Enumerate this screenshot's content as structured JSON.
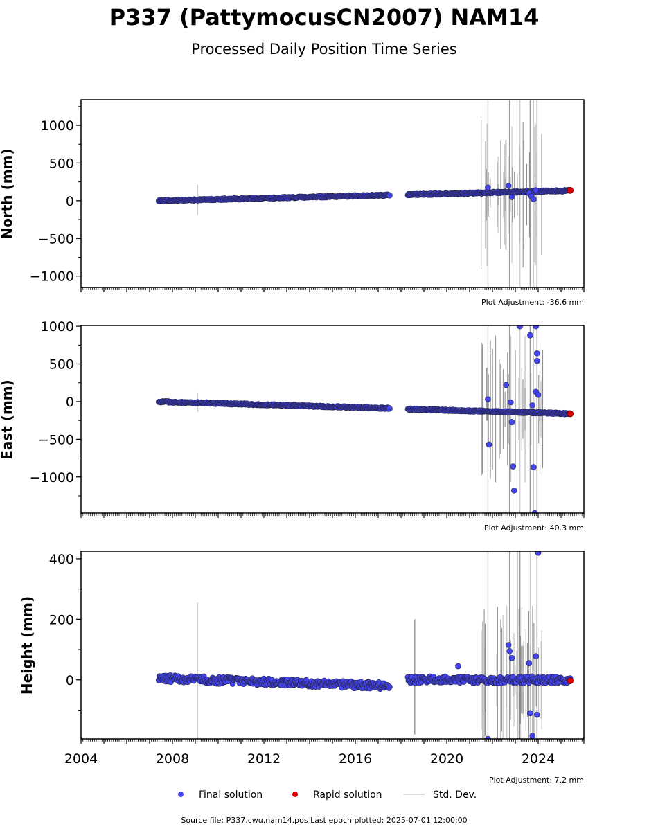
{
  "title": "P337 (PattymocusCN2007) NAM14",
  "subtitle": "Processed Daily Position Time Series",
  "footer": "Source file: P337.cwu.nam14.pos  Last epoch plotted: 2025-07-01 12:00:00",
  "legend": {
    "final": "Final solution",
    "rapid": "Rapid solution",
    "std": "Std. Dev."
  },
  "colors": {
    "final_fill": "#4444ee",
    "rapid_fill": "#e00000",
    "std_line": "#aaaaaa",
    "axis": "#000000"
  },
  "chart_data": [
    {
      "type": "scatter",
      "panel": "north",
      "ylabel": "North (mm)",
      "xlim": [
        2004,
        2026
      ],
      "ylim": [
        -1150,
        1340
      ],
      "yticks": [
        -1000,
        -500,
        0,
        500,
        1000
      ],
      "ytick_labels": [
        "−1000",
        "−500",
        "0",
        "500",
        "1000"
      ],
      "adjustment": "Plot Adjustment: -36.6 mm",
      "series": [
        {
          "name": "Final solution",
          "segments": [
            {
              "x": [
                2007.4,
                2017.5
              ],
              "y": [
                0,
                75
              ]
            },
            {
              "x": [
                2018.3,
                2025.4
              ],
              "y": [
                80,
                135
              ]
            }
          ]
        },
        {
          "name": "Rapid solution",
          "x": [
            2025.4
          ],
          "y": [
            138
          ]
        }
      ],
      "outliers": [
        {
          "x": 2021.8,
          "y": 175
        },
        {
          "x": 2022.7,
          "y": 200
        },
        {
          "x": 2022.85,
          "y": 50
        },
        {
          "x": 2023.6,
          "y": 100
        },
        {
          "x": 2023.7,
          "y": 60
        },
        {
          "x": 2023.8,
          "y": 20
        },
        {
          "x": 2023.9,
          "y": 140
        }
      ],
      "stdev": [
        {
          "x": 2009.1,
          "lo": -190,
          "hi": 210
        },
        {
          "x": 2021.9,
          "lo": -90,
          "hi": 290
        },
        {
          "x": 2021.8,
          "lo": -1150,
          "hi": 1340
        },
        {
          "x": 2022.75,
          "lo": -1150,
          "hi": 1340
        },
        {
          "x": 2023.2,
          "lo": -1150,
          "hi": 1340
        },
        {
          "x": 2023.65,
          "lo": -1150,
          "hi": 1340
        },
        {
          "x": 2023.8,
          "lo": -1150,
          "hi": 1340
        },
        {
          "x": 2023.95,
          "lo": -1150,
          "hi": 1340
        }
      ]
    },
    {
      "type": "scatter",
      "panel": "east",
      "ylabel": "East (mm)",
      "xlim": [
        2004,
        2026
      ],
      "ylim": [
        -1480,
        1010
      ],
      "yticks": [
        -1000,
        -500,
        0,
        500,
        1000
      ],
      "ytick_labels": [
        "−1000",
        "−500",
        "0",
        "500",
        "1000"
      ],
      "adjustment": "Plot Adjustment: 40.3 mm",
      "series": [
        {
          "name": "Final solution",
          "segments": [
            {
              "x": [
                2007.4,
                2017.5
              ],
              "y": [
                0,
                -90
              ]
            },
            {
              "x": [
                2018.3,
                2025.4
              ],
              "y": [
                -100,
                -160
              ]
            }
          ]
        },
        {
          "name": "Rapid solution",
          "x": [
            2025.4
          ],
          "y": [
            -162
          ]
        }
      ],
      "outliers": [
        {
          "x": 2021.8,
          "y": 30
        },
        {
          "x": 2021.85,
          "y": -570
        },
        {
          "x": 2022.6,
          "y": 220
        },
        {
          "x": 2022.8,
          "y": -10
        },
        {
          "x": 2022.85,
          "y": -270
        },
        {
          "x": 2022.9,
          "y": -860
        },
        {
          "x": 2022.95,
          "y": -1180
        },
        {
          "x": 2023.2,
          "y": 1000
        },
        {
          "x": 2023.65,
          "y": 880
        },
        {
          "x": 2023.75,
          "y": -50
        },
        {
          "x": 2023.8,
          "y": -870
        },
        {
          "x": 2023.85,
          "y": -1480
        },
        {
          "x": 2023.9,
          "y": 1000
        },
        {
          "x": 2023.95,
          "y": 640
        },
        {
          "x": 2023.95,
          "y": 540
        },
        {
          "x": 2023.9,
          "y": 130
        },
        {
          "x": 2024.0,
          "y": 90
        }
      ],
      "stdev": [
        {
          "x": 2009.1,
          "lo": -140,
          "hi": 110
        },
        {
          "x": 2021.75,
          "lo": -250,
          "hi": 450
        },
        {
          "x": 2021.8,
          "lo": -1480,
          "hi": 1010
        },
        {
          "x": 2022.75,
          "lo": -1480,
          "hi": 1010
        },
        {
          "x": 2023.2,
          "lo": -1480,
          "hi": 1010
        },
        {
          "x": 2023.65,
          "lo": -1480,
          "hi": 1010
        },
        {
          "x": 2023.8,
          "lo": -1480,
          "hi": 1010
        },
        {
          "x": 2023.95,
          "lo": -1480,
          "hi": 1010
        }
      ]
    },
    {
      "type": "scatter",
      "panel": "height",
      "ylabel": "Height (mm)",
      "xlim": [
        2004,
        2026
      ],
      "ylim": [
        -195,
        425
      ],
      "yticks": [
        0,
        200,
        400
      ],
      "ytick_labels": [
        "0",
        "200",
        "400"
      ],
      "xticks": [
        2004,
        2008,
        2012,
        2016,
        2020,
        2024
      ],
      "xtick_labels": [
        "2004",
        "2008",
        "2012",
        "2016",
        "2020",
        "2024"
      ],
      "adjustment": "Plot Adjustment: 7.2 mm",
      "series": [
        {
          "name": "Final solution",
          "segments": [
            {
              "x": [
                2007.4,
                2017.5
              ],
              "y": [
                5,
                -20
              ]
            },
            {
              "x": [
                2018.3,
                2025.4
              ],
              "y": [
                0,
                0
              ]
            }
          ]
        },
        {
          "name": "Rapid solution",
          "x": [
            2025.4
          ],
          "y": [
            -3
          ]
        }
      ],
      "outliers": [
        {
          "x": 2020.5,
          "y": 45
        },
        {
          "x": 2021.8,
          "y": -195
        },
        {
          "x": 2022.7,
          "y": 115
        },
        {
          "x": 2022.75,
          "y": 95
        },
        {
          "x": 2022.85,
          "y": 72
        },
        {
          "x": 2023.6,
          "y": 55
        },
        {
          "x": 2023.65,
          "y": -110
        },
        {
          "x": 2023.75,
          "y": -185
        },
        {
          "x": 2023.9,
          "y": 78
        },
        {
          "x": 2023.95,
          "y": -115
        },
        {
          "x": 2024.0,
          "y": 420
        }
      ],
      "stdev": [
        {
          "x": 2009.1,
          "lo": -195,
          "hi": 255
        },
        {
          "x": 2018.6,
          "lo": -180,
          "hi": 200
        },
        {
          "x": 2021.8,
          "lo": -195,
          "hi": 425
        },
        {
          "x": 2022.75,
          "lo": -195,
          "hi": 425
        },
        {
          "x": 2023.1,
          "lo": -195,
          "hi": 425
        },
        {
          "x": 2023.2,
          "lo": -195,
          "hi": 425
        },
        {
          "x": 2023.65,
          "lo": -195,
          "hi": 425
        },
        {
          "x": 2023.95,
          "lo": -195,
          "hi": 425
        }
      ]
    }
  ]
}
